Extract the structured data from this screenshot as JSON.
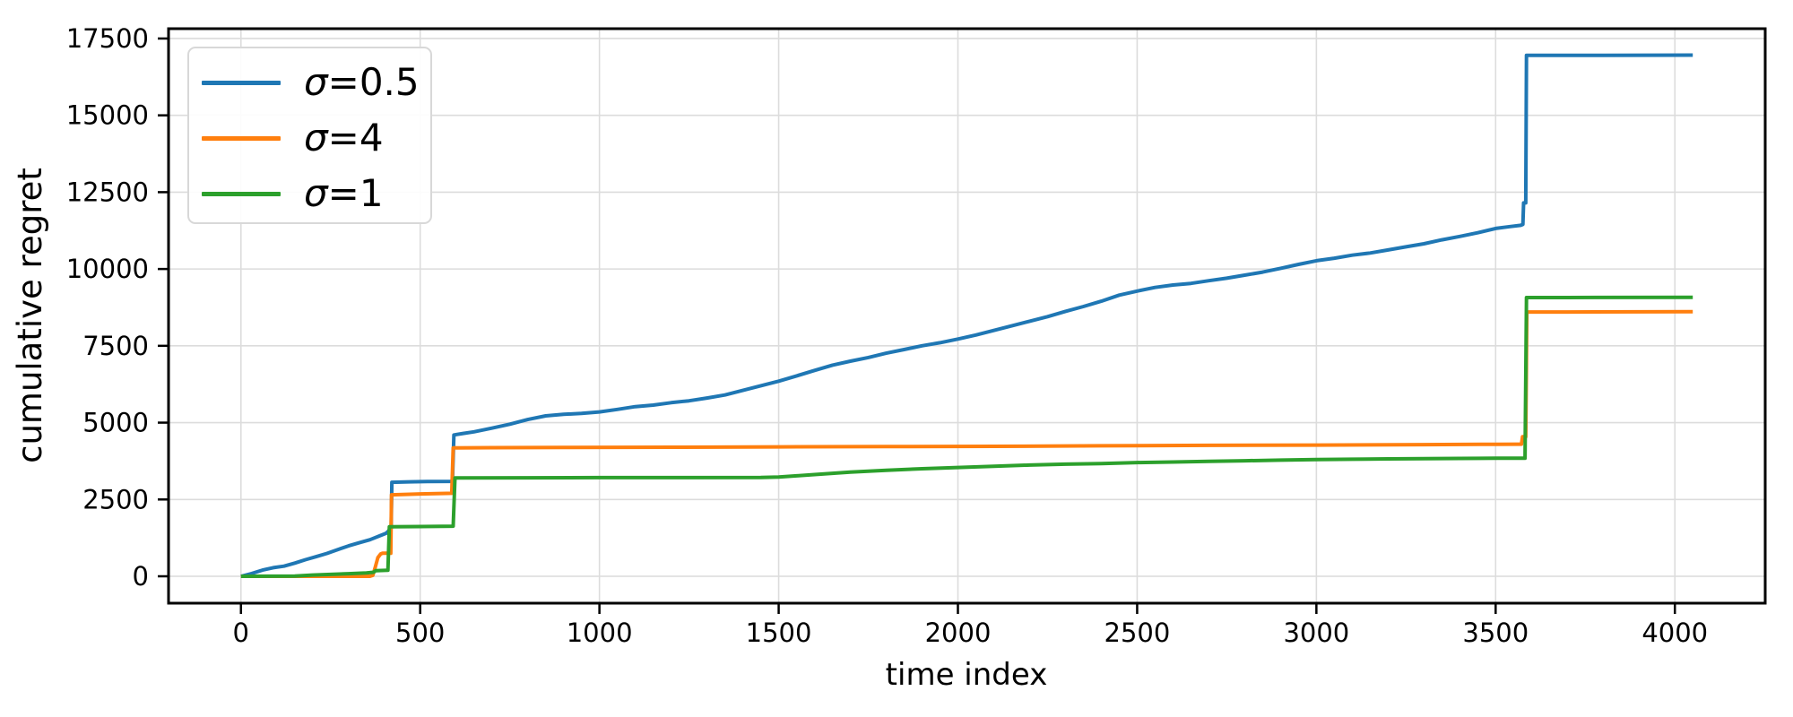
{
  "chart_data": {
    "type": "line",
    "title": "",
    "xlabel": "time index",
    "ylabel": "cumulative regret",
    "x_ticks": [
      0,
      500,
      1000,
      1500,
      2000,
      2500,
      3000,
      3500,
      4000
    ],
    "y_ticks": [
      0,
      2500,
      5000,
      7500,
      10000,
      12500,
      15000,
      17500
    ],
    "xlim": [
      -202,
      4252
    ],
    "ylim": [
      -875,
      17820
    ],
    "grid": true,
    "grid_color": "#dcdcdc",
    "spine_color": "#000000",
    "legend_position": "upper left",
    "legend": {
      "entries": [
        {
          "symbol": "σ",
          "value": "=0.5"
        },
        {
          "symbol": "σ",
          "value": "=4"
        },
        {
          "symbol": "σ",
          "value": "=1"
        }
      ]
    },
    "series": [
      {
        "name": "σ=0.5",
        "color": "#1f77b4",
        "points": [
          [
            0,
            0
          ],
          [
            30,
            90
          ],
          [
            60,
            200
          ],
          [
            90,
            280
          ],
          [
            120,
            330
          ],
          [
            150,
            430
          ],
          [
            180,
            540
          ],
          [
            210,
            640
          ],
          [
            240,
            745
          ],
          [
            270,
            870
          ],
          [
            300,
            990
          ],
          [
            330,
            1090
          ],
          [
            360,
            1190
          ],
          [
            390,
            1330
          ],
          [
            405,
            1400
          ],
          [
            412,
            1480
          ],
          [
            416,
            1560
          ],
          [
            419,
            1560
          ],
          [
            421,
            3060
          ],
          [
            470,
            3075
          ],
          [
            520,
            3085
          ],
          [
            585,
            3090
          ],
          [
            590,
            3100
          ],
          [
            594,
            4600
          ],
          [
            620,
            4650
          ],
          [
            650,
            4700
          ],
          [
            700,
            4820
          ],
          [
            750,
            4950
          ],
          [
            800,
            5100
          ],
          [
            850,
            5220
          ],
          [
            900,
            5270
          ],
          [
            950,
            5300
          ],
          [
            1000,
            5350
          ],
          [
            1050,
            5430
          ],
          [
            1100,
            5520
          ],
          [
            1150,
            5570
          ],
          [
            1200,
            5650
          ],
          [
            1250,
            5710
          ],
          [
            1300,
            5800
          ],
          [
            1350,
            5900
          ],
          [
            1400,
            6050
          ],
          [
            1450,
            6200
          ],
          [
            1500,
            6350
          ],
          [
            1550,
            6520
          ],
          [
            1600,
            6700
          ],
          [
            1650,
            6870
          ],
          [
            1700,
            7000
          ],
          [
            1750,
            7120
          ],
          [
            1800,
            7260
          ],
          [
            1850,
            7380
          ],
          [
            1900,
            7500
          ],
          [
            1950,
            7600
          ],
          [
            2000,
            7720
          ],
          [
            2050,
            7850
          ],
          [
            2100,
            8000
          ],
          [
            2150,
            8150
          ],
          [
            2200,
            8300
          ],
          [
            2250,
            8450
          ],
          [
            2300,
            8620
          ],
          [
            2350,
            8780
          ],
          [
            2400,
            8950
          ],
          [
            2450,
            9150
          ],
          [
            2500,
            9280
          ],
          [
            2550,
            9400
          ],
          [
            2600,
            9480
          ],
          [
            2650,
            9530
          ],
          [
            2700,
            9620
          ],
          [
            2750,
            9700
          ],
          [
            2800,
            9800
          ],
          [
            2850,
            9900
          ],
          [
            2900,
            10020
          ],
          [
            2950,
            10150
          ],
          [
            3000,
            10270
          ],
          [
            3050,
            10350
          ],
          [
            3100,
            10450
          ],
          [
            3150,
            10520
          ],
          [
            3200,
            10620
          ],
          [
            3250,
            10720
          ],
          [
            3300,
            10820
          ],
          [
            3350,
            10950
          ],
          [
            3400,
            11060
          ],
          [
            3450,
            11180
          ],
          [
            3500,
            11320
          ],
          [
            3540,
            11380
          ],
          [
            3570,
            11420
          ],
          [
            3576,
            11450
          ],
          [
            3578,
            12150
          ],
          [
            3584,
            12150
          ],
          [
            3586,
            16950
          ],
          [
            3650,
            16950
          ],
          [
            3800,
            16955
          ],
          [
            4050,
            16960
          ]
        ]
      },
      {
        "name": "σ=4",
        "color": "#ff7f0e",
        "points": [
          [
            0,
            0
          ],
          [
            360,
            0
          ],
          [
            368,
            30
          ],
          [
            375,
            310
          ],
          [
            382,
            610
          ],
          [
            390,
            730
          ],
          [
            395,
            750
          ],
          [
            418,
            750
          ],
          [
            420,
            2650
          ],
          [
            500,
            2680
          ],
          [
            588,
            2700
          ],
          [
            592,
            4180
          ],
          [
            700,
            4185
          ],
          [
            900,
            4190
          ],
          [
            1200,
            4200
          ],
          [
            1500,
            4210
          ],
          [
            1800,
            4220
          ],
          [
            2100,
            4230
          ],
          [
            2400,
            4245
          ],
          [
            2700,
            4260
          ],
          [
            3000,
            4270
          ],
          [
            3300,
            4285
          ],
          [
            3500,
            4295
          ],
          [
            3565,
            4300
          ],
          [
            3572,
            4300
          ],
          [
            3575,
            4540
          ],
          [
            3584,
            4540
          ],
          [
            3587,
            8600
          ],
          [
            3700,
            8600
          ],
          [
            4050,
            8610
          ]
        ]
      },
      {
        "name": "σ=1",
        "color": "#2ca02c",
        "points": [
          [
            0,
            0
          ],
          [
            150,
            10
          ],
          [
            200,
            40
          ],
          [
            250,
            60
          ],
          [
            300,
            85
          ],
          [
            350,
            110
          ],
          [
            370,
            130
          ],
          [
            376,
            185
          ],
          [
            410,
            195
          ],
          [
            414,
            1610
          ],
          [
            500,
            1620
          ],
          [
            592,
            1630
          ],
          [
            597,
            3200
          ],
          [
            800,
            3205
          ],
          [
            1000,
            3210
          ],
          [
            1200,
            3210
          ],
          [
            1450,
            3215
          ],
          [
            1500,
            3230
          ],
          [
            1550,
            3270
          ],
          [
            1600,
            3310
          ],
          [
            1700,
            3390
          ],
          [
            1800,
            3450
          ],
          [
            1900,
            3500
          ],
          [
            2000,
            3540
          ],
          [
            2100,
            3580
          ],
          [
            2200,
            3620
          ],
          [
            2300,
            3650
          ],
          [
            2400,
            3670
          ],
          [
            2500,
            3700
          ],
          [
            2600,
            3720
          ],
          [
            2700,
            3740
          ],
          [
            2800,
            3760
          ],
          [
            2900,
            3780
          ],
          [
            3000,
            3800
          ],
          [
            3100,
            3810
          ],
          [
            3200,
            3820
          ],
          [
            3300,
            3830
          ],
          [
            3400,
            3835
          ],
          [
            3500,
            3840
          ],
          [
            3560,
            3845
          ],
          [
            3582,
            3845
          ],
          [
            3586,
            9070
          ],
          [
            3700,
            9070
          ],
          [
            4050,
            9080
          ]
        ]
      }
    ]
  }
}
